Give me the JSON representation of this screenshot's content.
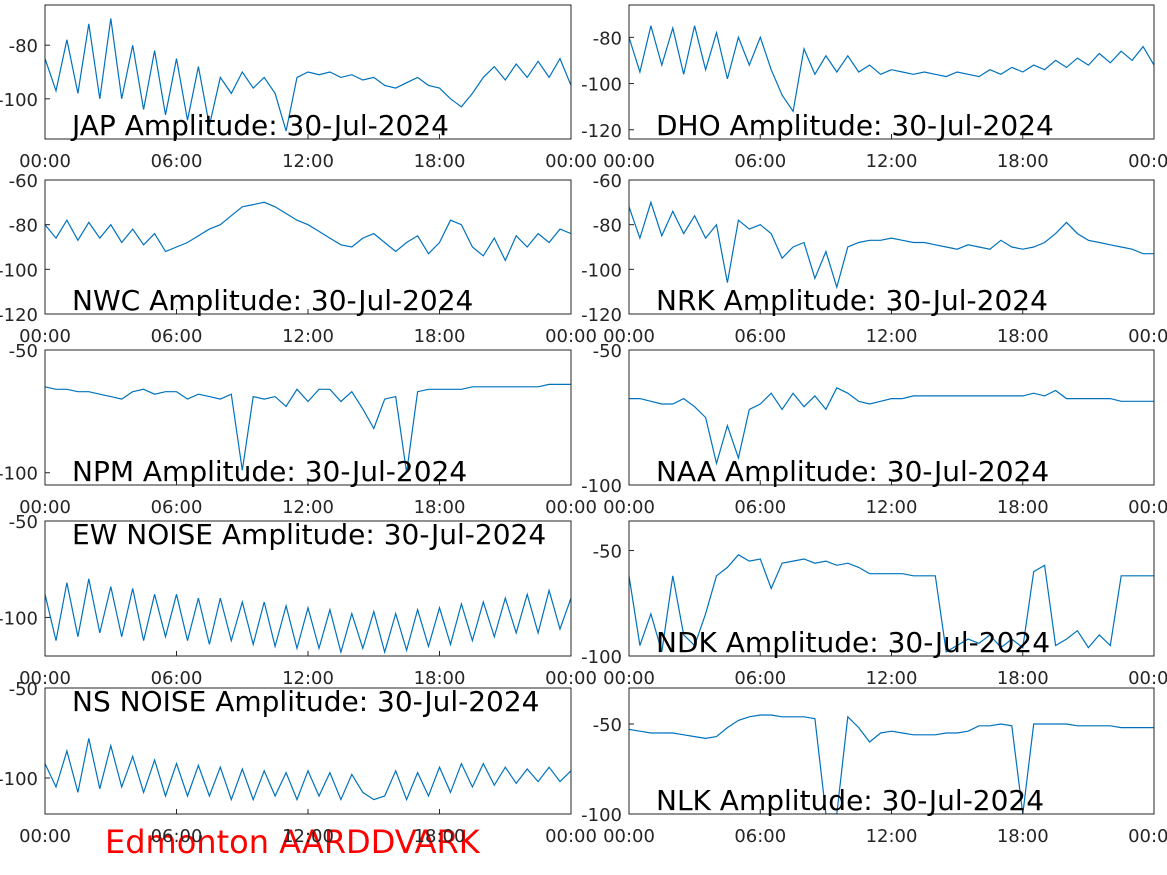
{
  "chart_data": [
    {
      "type": "line",
      "title": "JAP Amplitude: 30-Jul-2024",
      "color": "#0072bd",
      "xlim": [
        0,
        24
      ],
      "ylim": [
        -115,
        -65
      ],
      "yticks": [
        -100,
        -80
      ],
      "xticks": [
        {
          "value": 0,
          "label": "00:00"
        },
        {
          "value": 6,
          "label": "06:00"
        },
        {
          "value": 12,
          "label": "12:00"
        },
        {
          "value": 18,
          "label": "18:00"
        },
        {
          "value": 24,
          "label": "00:00"
        }
      ],
      "x": [
        0,
        0.5,
        1,
        1.5,
        2,
        2.5,
        3,
        3.5,
        4,
        4.5,
        5,
        5.5,
        6,
        6.5,
        7,
        7.5,
        8,
        8.5,
        9,
        9.5,
        10,
        10.5,
        11,
        11.5,
        12,
        12.5,
        13,
        13.5,
        14,
        14.5,
        15,
        15.5,
        16,
        16.5,
        17,
        17.5,
        18,
        18.5,
        19,
        19.5,
        20,
        20.5,
        21,
        21.5,
        22,
        22.5,
        23,
        23.5,
        24
      ],
      "values": [
        -85,
        -97,
        -78,
        -98,
        -72,
        -100,
        -70,
        -100,
        -80,
        -104,
        -82,
        -106,
        -85,
        -108,
        -88,
        -110,
        -92,
        -98,
        -90,
        -96,
        -92,
        -98,
        -112,
        -92,
        -90,
        -91,
        -90,
        -92,
        -91,
        -93,
        -92,
        -95,
        -96,
        -94,
        -92,
        -95,
        -96,
        -100,
        -103,
        -98,
        -92,
        -88,
        -93,
        -87,
        -92,
        -86,
        -92,
        -85,
        -95
      ]
    },
    {
      "type": "line",
      "title": "DHO Amplitude: 30-Jul-2024",
      "color": "#0072bd",
      "xlim": [
        0,
        24
      ],
      "ylim": [
        -124,
        -66
      ],
      "yticks": [
        -120,
        -100,
        -80
      ],
      "xticks": [
        {
          "value": 0,
          "label": "00:00"
        },
        {
          "value": 6,
          "label": "06:00"
        },
        {
          "value": 12,
          "label": "12:00"
        },
        {
          "value": 18,
          "label": "18:00"
        },
        {
          "value": 24,
          "label": "00:00"
        }
      ],
      "x": [
        0,
        0.5,
        1,
        1.5,
        2,
        2.5,
        3,
        3.5,
        4,
        4.5,
        5,
        5.5,
        6,
        6.5,
        7,
        7.5,
        8,
        8.5,
        9,
        9.5,
        10,
        10.5,
        11,
        11.5,
        12,
        12.5,
        13,
        13.5,
        14,
        14.5,
        15,
        15.5,
        16,
        16.5,
        17,
        17.5,
        18,
        18.5,
        19,
        19.5,
        20,
        20.5,
        21,
        21.5,
        22,
        22.5,
        23,
        23.5,
        24
      ],
      "values": [
        -80,
        -95,
        -75,
        -92,
        -76,
        -96,
        -75,
        -94,
        -78,
        -98,
        -80,
        -92,
        -80,
        -94,
        -105,
        -112,
        -85,
        -96,
        -88,
        -95,
        -88,
        -95,
        -92,
        -96,
        -94,
        -95,
        -96,
        -95,
        -96,
        -97,
        -95,
        -96,
        -97,
        -94,
        -96,
        -93,
        -95,
        -92,
        -94,
        -90,
        -93,
        -89,
        -92,
        -87,
        -91,
        -86,
        -90,
        -84,
        -92
      ]
    },
    {
      "type": "line",
      "title": "NWC Amplitude: 30-Jul-2024",
      "color": "#0072bd",
      "xlim": [
        0,
        24
      ],
      "ylim": [
        -120,
        -60
      ],
      "yticks": [
        -120,
        -100,
        -80,
        -60
      ],
      "xticks": [
        {
          "value": 0,
          "label": "00:00"
        },
        {
          "value": 6,
          "label": "06:00"
        },
        {
          "value": 12,
          "label": "12:00"
        },
        {
          "value": 18,
          "label": "18:00"
        },
        {
          "value": 24,
          "label": "00:00"
        }
      ],
      "x": [
        0,
        0.5,
        1,
        1.5,
        2,
        2.5,
        3,
        3.5,
        4,
        4.5,
        5,
        5.5,
        6,
        6.5,
        7,
        7.5,
        8,
        8.5,
        9,
        9.5,
        10,
        10.5,
        11,
        11.5,
        12,
        12.5,
        13,
        13.5,
        14,
        14.5,
        15,
        15.5,
        16,
        16.5,
        17,
        17.5,
        18,
        18.5,
        19,
        19.5,
        20,
        20.5,
        21,
        21.5,
        22,
        22.5,
        23,
        23.5,
        24
      ],
      "values": [
        -80,
        -86,
        -78,
        -87,
        -79,
        -86,
        -80,
        -88,
        -82,
        -89,
        -84,
        -92,
        -90,
        -88,
        -85,
        -82,
        -80,
        -76,
        -72,
        -71,
        -70,
        -72,
        -75,
        -78,
        -80,
        -83,
        -86,
        -89,
        -90,
        -86,
        -84,
        -88,
        -92,
        -88,
        -85,
        -93,
        -88,
        -78,
        -80,
        -90,
        -94,
        -86,
        -96,
        -85,
        -90,
        -84,
        -88,
        -82,
        -84
      ]
    },
    {
      "type": "line",
      "title": "NRK Amplitude: 30-Jul-2024",
      "color": "#0072bd",
      "xlim": [
        0,
        24
      ],
      "ylim": [
        -120,
        -60
      ],
      "yticks": [
        -120,
        -100,
        -80,
        -60
      ],
      "xticks": [
        {
          "value": 0,
          "label": "00:00"
        },
        {
          "value": 6,
          "label": "06:00"
        },
        {
          "value": 12,
          "label": "12:00"
        },
        {
          "value": 18,
          "label": "18:00"
        },
        {
          "value": 24,
          "label": "00:00"
        }
      ],
      "x": [
        0,
        0.5,
        1,
        1.5,
        2,
        2.5,
        3,
        3.5,
        4,
        4.5,
        5,
        5.5,
        6,
        6.5,
        7,
        7.5,
        8,
        8.5,
        9,
        9.5,
        10,
        10.5,
        11,
        11.5,
        12,
        12.5,
        13,
        13.5,
        14,
        14.5,
        15,
        15.5,
        16,
        16.5,
        17,
        17.5,
        18,
        18.5,
        19,
        19.5,
        20,
        20.5,
        21,
        21.5,
        22,
        22.5,
        23,
        23.5,
        24
      ],
      "values": [
        -72,
        -86,
        -70,
        -85,
        -74,
        -84,
        -76,
        -86,
        -80,
        -106,
        -78,
        -82,
        -80,
        -84,
        -95,
        -90,
        -88,
        -104,
        -92,
        -108,
        -90,
        -88,
        -87,
        -87,
        -86,
        -87,
        -88,
        -88,
        -89,
        -90,
        -91,
        -89,
        -90,
        -91,
        -87,
        -90,
        -91,
        -90,
        -88,
        -84,
        -79,
        -84,
        -87,
        -88,
        -89,
        -90,
        -91,
        -93,
        -93
      ]
    },
    {
      "type": "line",
      "title": "NPM Amplitude: 30-Jul-2024",
      "color": "#0072bd",
      "xlim": [
        0,
        24
      ],
      "ylim": [
        -105,
        -50
      ],
      "yticks": [
        -100,
        -50
      ],
      "xticks": [
        {
          "value": 0,
          "label": "00:00"
        },
        {
          "value": 6,
          "label": "06:00"
        },
        {
          "value": 12,
          "label": "12:00"
        },
        {
          "value": 18,
          "label": "18:00"
        },
        {
          "value": 24,
          "label": "00:00"
        }
      ],
      "x": [
        0,
        0.5,
        1,
        1.5,
        2,
        2.5,
        3,
        3.5,
        4,
        4.5,
        5,
        5.5,
        6,
        6.5,
        7,
        7.5,
        8,
        8.5,
        9,
        9.5,
        10,
        10.5,
        11,
        11.5,
        12,
        12.5,
        13,
        13.5,
        14,
        14.5,
        15,
        15.5,
        16,
        16.5,
        17,
        17.5,
        18,
        18.5,
        19,
        19.5,
        20,
        20.5,
        21,
        21.5,
        22,
        22.5,
        23,
        23.5,
        24
      ],
      "values": [
        -65,
        -66,
        -66,
        -67,
        -67,
        -68,
        -69,
        -70,
        -67,
        -66,
        -68,
        -67,
        -67,
        -70,
        -68,
        -69,
        -70,
        -68,
        -99,
        -69,
        -70,
        -69,
        -73,
        -66,
        -71,
        -66,
        -66,
        -71,
        -67,
        -74,
        -82,
        -70,
        -69,
        -100,
        -67,
        -66,
        -66,
        -66,
        -66,
        -65,
        -65,
        -65,
        -65,
        -65,
        -65,
        -65,
        -64,
        -64,
        -64
      ]
    },
    {
      "type": "line",
      "title": "NAA Amplitude: 30-Jul-2024",
      "color": "#0072bd",
      "xlim": [
        0,
        24
      ],
      "ylim": [
        -100,
        -50
      ],
      "yticks": [
        -100,
        -50
      ],
      "xticks": [
        {
          "value": 0,
          "label": "00:00"
        },
        {
          "value": 6,
          "label": "06:00"
        },
        {
          "value": 12,
          "label": "12:00"
        },
        {
          "value": 18,
          "label": "18:00"
        },
        {
          "value": 24,
          "label": "00:00"
        }
      ],
      "x": [
        0,
        0.5,
        1,
        1.5,
        2,
        2.5,
        3,
        3.5,
        4,
        4.5,
        5,
        5.5,
        6,
        6.5,
        7,
        7.5,
        8,
        8.5,
        9,
        9.5,
        10,
        10.5,
        11,
        11.5,
        12,
        12.5,
        13,
        13.5,
        14,
        14.5,
        15,
        15.5,
        16,
        16.5,
        17,
        17.5,
        18,
        18.5,
        19,
        19.5,
        20,
        20.5,
        21,
        21.5,
        22,
        22.5,
        23,
        23.5,
        24
      ],
      "values": [
        -68,
        -68,
        -69,
        -70,
        -70,
        -68,
        -71,
        -75,
        -92,
        -78,
        -90,
        -72,
        -70,
        -66,
        -72,
        -66,
        -71,
        -67,
        -72,
        -64,
        -66,
        -69,
        -70,
        -69,
        -68,
        -68,
        -67,
        -67,
        -67,
        -67,
        -67,
        -67,
        -67,
        -67,
        -67,
        -67,
        -67,
        -66,
        -67,
        -65,
        -68,
        -68,
        -68,
        -68,
        -68,
        -69,
        -69,
        -69,
        -69
      ]
    },
    {
      "type": "line",
      "title": "EW NOISE Amplitude: 30-Jul-2024",
      "color": "#0072bd",
      "xlim": [
        0,
        24
      ],
      "ylim": [
        -120,
        -50
      ],
      "yticks": [
        -100,
        -50
      ],
      "xticks": [
        {
          "value": 0,
          "label": "00:00"
        },
        {
          "value": 6,
          "label": "06:00"
        },
        {
          "value": 12,
          "label": "12:00"
        },
        {
          "value": 18,
          "label": "18:00"
        },
        {
          "value": 24,
          "label": "00:00"
        }
      ],
      "x": [
        0,
        0.5,
        1,
        1.5,
        2,
        2.5,
        3,
        3.5,
        4,
        4.5,
        5,
        5.5,
        6,
        6.5,
        7,
        7.5,
        8,
        8.5,
        9,
        9.5,
        10,
        10.5,
        11,
        11.5,
        12,
        12.5,
        13,
        13.5,
        14,
        14.5,
        15,
        15.5,
        16,
        16.5,
        17,
        17.5,
        18,
        18.5,
        19,
        19.5,
        20,
        20.5,
        21,
        21.5,
        22,
        22.5,
        23,
        23.5,
        24
      ],
      "values": [
        -88,
        -112,
        -82,
        -110,
        -80,
        -108,
        -84,
        -110,
        -85,
        -112,
        -88,
        -110,
        -88,
        -112,
        -90,
        -114,
        -90,
        -112,
        -92,
        -114,
        -92,
        -115,
        -94,
        -116,
        -95,
        -116,
        -96,
        -118,
        -98,
        -116,
        -97,
        -118,
        -98,
        -117,
        -96,
        -115,
        -95,
        -114,
        -93,
        -112,
        -92,
        -110,
        -90,
        -108,
        -88,
        -108,
        -86,
        -106,
        -90
      ]
    },
    {
      "type": "line",
      "title": "NDK Amplitude: 30-Jul-2024",
      "color": "#0072bd",
      "xlim": [
        0,
        24
      ],
      "ylim": [
        -100,
        -36
      ],
      "yticks": [
        -100,
        -50
      ],
      "xticks": [
        {
          "value": 0,
          "label": "00:00"
        },
        {
          "value": 6,
          "label": "06:00"
        },
        {
          "value": 12,
          "label": "12:00"
        },
        {
          "value": 18,
          "label": "18:00"
        },
        {
          "value": 24,
          "label": "00:00"
        }
      ],
      "x": [
        0,
        0.5,
        1,
        1.5,
        2,
        2.5,
        3,
        3.5,
        4,
        4.5,
        5,
        5.5,
        6,
        6.5,
        7,
        7.5,
        8,
        8.5,
        9,
        9.5,
        10,
        10.5,
        11,
        11.5,
        12,
        12.5,
        13,
        13.5,
        14,
        14.5,
        15,
        15.5,
        16,
        16.5,
        17,
        17.5,
        18,
        18.5,
        19,
        19.5,
        20,
        20.5,
        21,
        21.5,
        22,
        22.5,
        23,
        23.5,
        24
      ],
      "values": [
        -62,
        -95,
        -80,
        -98,
        -62,
        -90,
        -95,
        -80,
        -62,
        -58,
        -52,
        -55,
        -54,
        -68,
        -56,
        -55,
        -54,
        -56,
        -55,
        -57,
        -56,
        -58,
        -61,
        -61,
        -61,
        -61,
        -62,
        -62,
        -62,
        -98,
        -95,
        -92,
        -94,
        -90,
        -96,
        -92,
        -96,
        -60,
        -57,
        -95,
        -92,
        -88,
        -96,
        -90,
        -95,
        -62,
        -62,
        -62,
        -62
      ]
    },
    {
      "type": "line",
      "title": "NS NOISE Amplitude: 30-Jul-2024",
      "color": "#0072bd",
      "xlim": [
        0,
        24
      ],
      "ylim": [
        -120,
        -50
      ],
      "yticks": [
        -100,
        -50
      ],
      "xticks": [
        {
          "value": 0,
          "label": "00:00"
        },
        {
          "value": 6,
          "label": "06:00"
        },
        {
          "value": 12,
          "label": "12:00"
        },
        {
          "value": 18,
          "label": "18:00"
        },
        {
          "value": 24,
          "label": "00:00"
        }
      ],
      "x": [
        0,
        0.5,
        1,
        1.5,
        2,
        2.5,
        3,
        3.5,
        4,
        4.5,
        5,
        5.5,
        6,
        6.5,
        7,
        7.5,
        8,
        8.5,
        9,
        9.5,
        10,
        10.5,
        11,
        11.5,
        12,
        12.5,
        13,
        13.5,
        14,
        14.5,
        15,
        15.5,
        16,
        16.5,
        17,
        17.5,
        18,
        18.5,
        19,
        19.5,
        20,
        20.5,
        21,
        21.5,
        22,
        22.5,
        23,
        23.5,
        24
      ],
      "values": [
        -92,
        -105,
        -85,
        -108,
        -78,
        -106,
        -82,
        -105,
        -88,
        -108,
        -90,
        -110,
        -92,
        -110,
        -93,
        -110,
        -94,
        -112,
        -95,
        -112,
        -96,
        -110,
        -97,
        -112,
        -96,
        -110,
        -97,
        -112,
        -98,
        -108,
        -112,
        -110,
        -96,
        -112,
        -97,
        -110,
        -94,
        -108,
        -92,
        -105,
        -92,
        -104,
        -94,
        -103,
        -95,
        -102,
        -94,
        -102,
        -96
      ]
    },
    {
      "type": "line",
      "title": "NLK Amplitude: 30-Jul-2024",
      "color": "#0072bd",
      "xlim": [
        0,
        24
      ],
      "ylim": [
        -100,
        -30
      ],
      "yticks": [
        -100,
        -50
      ],
      "xticks": [
        {
          "value": 0,
          "label": "00:00"
        },
        {
          "value": 6,
          "label": "06:00"
        },
        {
          "value": 12,
          "label": "12:00"
        },
        {
          "value": 18,
          "label": "18:00"
        },
        {
          "value": 24,
          "label": "00:00"
        }
      ],
      "x": [
        0,
        0.5,
        1,
        1.5,
        2,
        2.5,
        3,
        3.5,
        4,
        4.5,
        5,
        5.5,
        6,
        6.5,
        7,
        7.5,
        8,
        8.5,
        9,
        9.5,
        10,
        10.5,
        11,
        11.5,
        12,
        12.5,
        13,
        13.5,
        14,
        14.5,
        15,
        15.5,
        16,
        16.5,
        17,
        17.5,
        18,
        18.5,
        19,
        19.5,
        20,
        20.5,
        21,
        21.5,
        22,
        22.5,
        23,
        23.5,
        24
      ],
      "values": [
        -53,
        -54,
        -55,
        -55,
        -55,
        -56,
        -57,
        -58,
        -57,
        -52,
        -48,
        -46,
        -45,
        -45,
        -46,
        -46,
        -46,
        -47,
        -100,
        -100,
        -46,
        -52,
        -60,
        -55,
        -54,
        -55,
        -56,
        -56,
        -56,
        -55,
        -55,
        -54,
        -51,
        -51,
        -50,
        -51,
        -100,
        -50,
        -50,
        -50,
        -50,
        -51,
        -51,
        -51,
        -51,
        -52,
        -52,
        -52,
        -52
      ]
    }
  ],
  "footer": "Edmonton AARDDVARK"
}
